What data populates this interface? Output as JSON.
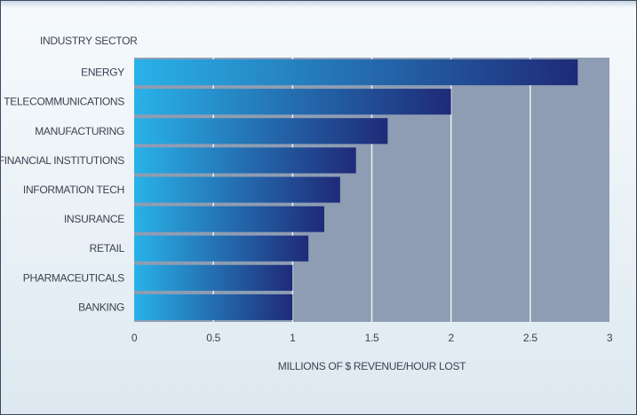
{
  "chart_data": {
    "type": "bar",
    "orientation": "horizontal",
    "category_axis_title": "INDUSTRY SECTOR",
    "xlabel": "MILLIONS OF $ REVENUE/HOUR LOST",
    "categories": [
      "ENERGY",
      "TELECOMMUNICATIONS",
      "MANUFACTURING",
      "FINANCIAL INSTITUTIONS",
      "INFORMATION TECH",
      "INSURANCE",
      "RETAIL",
      "PHARMACEUTICALS",
      "BANKING"
    ],
    "values": [
      2.8,
      2.0,
      1.6,
      1.4,
      1.3,
      1.2,
      1.1,
      1.0,
      1.0
    ],
    "xlim": [
      0,
      3
    ],
    "xticks": [
      0,
      0.5,
      1,
      1.5,
      2,
      2.5,
      3
    ],
    "xtick_labels": [
      "0",
      "0.5",
      "1",
      "1.5",
      "2",
      "2.5",
      "3"
    ],
    "grid": "vertical",
    "colors": {
      "plot_background": "#8e9db3",
      "bar_light": "#29b2e8",
      "bar_dark": "#1f2a78",
      "gridline": "#eef2f6"
    }
  }
}
